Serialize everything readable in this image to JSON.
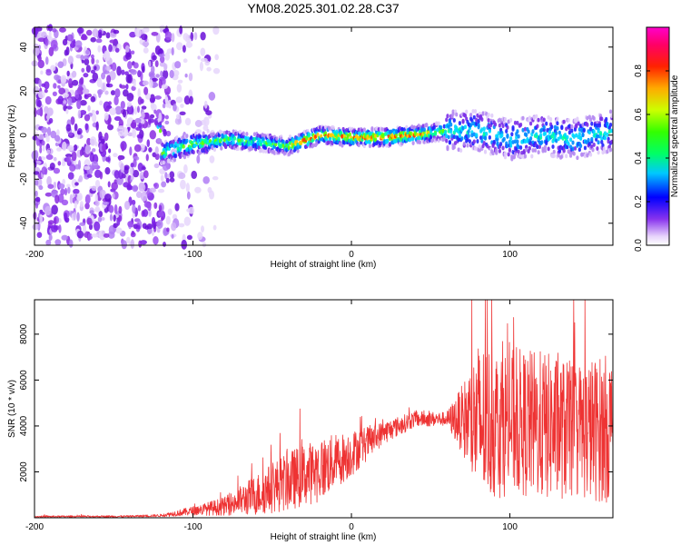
{
  "figure": {
    "title": "YM08.2025.301.02.28.C37"
  },
  "chart_data": [
    {
      "type": "heatmap",
      "name": "spectrogram",
      "xlabel": "Height of straight line (km)",
      "ylabel": "Frequency (Hz)",
      "xlim": [
        -200,
        165
      ],
      "ylim": [
        -50,
        49
      ],
      "xticks": [
        -200,
        -100,
        0,
        100
      ],
      "yticks": [
        -40,
        -20,
        0,
        20,
        40
      ],
      "signal_band": {
        "description": "narrow band centred near 0 Hz from about -120 km to 165 km",
        "center_hz_by_x": [
          {
            "x": -120,
            "hz": -8
          },
          {
            "x": -100,
            "hz": -4
          },
          {
            "x": -80,
            "hz": -2
          },
          {
            "x": -60,
            "hz": -3
          },
          {
            "x": -40,
            "hz": -5
          },
          {
            "x": -20,
            "hz": 0
          },
          {
            "x": 0,
            "hz": -1
          },
          {
            "x": 20,
            "hz": -1
          },
          {
            "x": 40,
            "hz": 0
          },
          {
            "x": 60,
            "hz": 2
          },
          {
            "x": 80,
            "hz": 2
          },
          {
            "x": 100,
            "hz": -2
          },
          {
            "x": 120,
            "hz": 0
          },
          {
            "x": 140,
            "hz": -2
          },
          {
            "x": 165,
            "hz": 2
          }
        ]
      },
      "noise_region_x": [
        -200,
        -85
      ]
    },
    {
      "type": "colorbar",
      "name": "colorbar",
      "label": "Normalized spectral amplitude",
      "range": [
        0,
        1
      ],
      "ticks": [
        "0.0",
        "0.2",
        "0.4",
        "0.6",
        "0.8"
      ]
    },
    {
      "type": "line",
      "name": "snr",
      "xlabel": "Height of straight line (km)",
      "ylabel": "SNR (10 * v/v)",
      "xlim": [
        -200,
        165
      ],
      "ylim": [
        0,
        9500
      ],
      "xticks": [
        -200,
        -100,
        0,
        100
      ],
      "yticks": [
        2000,
        4000,
        6000,
        8000
      ],
      "color": "#ee3333",
      "envelope": [
        {
          "x": -200,
          "mean": 50,
          "amp": 40
        },
        {
          "x": -140,
          "mean": 60,
          "amp": 40
        },
        {
          "x": -120,
          "mean": 100,
          "amp": 60
        },
        {
          "x": -100,
          "mean": 300,
          "amp": 200
        },
        {
          "x": -80,
          "mean": 500,
          "amp": 400
        },
        {
          "x": -60,
          "mean": 1000,
          "amp": 900
        },
        {
          "x": -40,
          "mean": 1600,
          "amp": 1300
        },
        {
          "x": -20,
          "mean": 2100,
          "amp": 1400
        },
        {
          "x": 0,
          "mean": 2800,
          "amp": 1000
        },
        {
          "x": 20,
          "mean": 3700,
          "amp": 500
        },
        {
          "x": 40,
          "mean": 4300,
          "amp": 350
        },
        {
          "x": 60,
          "mean": 4300,
          "amp": 300
        },
        {
          "x": 70,
          "mean": 4300,
          "amp": 1500
        },
        {
          "x": 80,
          "mean": 4100,
          "amp": 3600
        },
        {
          "x": 100,
          "mean": 4200,
          "amp": 3200
        },
        {
          "x": 120,
          "mean": 4000,
          "amp": 3300
        },
        {
          "x": 140,
          "mean": 3800,
          "amp": 3000
        },
        {
          "x": 165,
          "mean": 3900,
          "amp": 3300
        }
      ]
    }
  ]
}
